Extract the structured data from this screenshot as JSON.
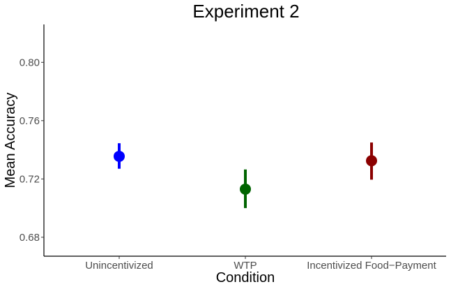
{
  "chart_data": {
    "type": "scatter",
    "title": "Experiment 2",
    "xlabel": "Condition",
    "ylabel": "Mean Accuracy",
    "categories": [
      "Unincentivized",
      "WTP",
      "Incentivized Food−Payment"
    ],
    "y_ticks": [
      0.68,
      0.72,
      0.76,
      0.8
    ],
    "y_tick_labels": [
      "0.68",
      "0.72",
      "0.76",
      "0.80"
    ],
    "ylim": [
      0.667,
      0.826
    ],
    "grid": false,
    "legend": "none",
    "points": [
      {
        "category": "Unincentivized",
        "mean": 0.7355,
        "lower": 0.727,
        "upper": 0.7445,
        "color": "#0000ff"
      },
      {
        "category": "WTP",
        "mean": 0.713,
        "lower": 0.7,
        "upper": 0.7265,
        "color": "#006400"
      },
      {
        "category": "Incentivized Food−Payment",
        "mean": 0.7325,
        "lower": 0.7195,
        "upper": 0.745,
        "color": "#8b0000"
      }
    ]
  }
}
